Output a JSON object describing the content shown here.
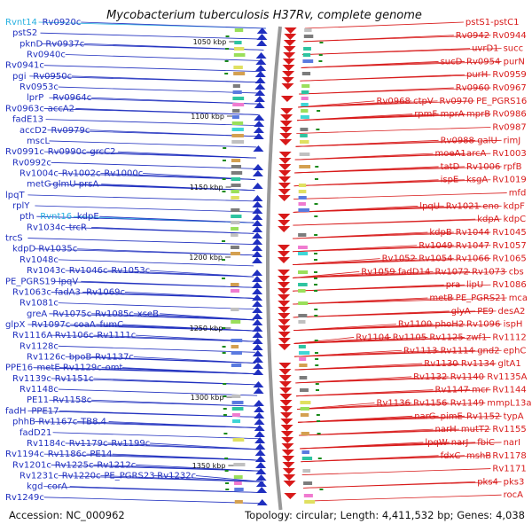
{
  "title": "Mycobacterium tuberculosis H37Rv, complete genome",
  "footer": {
    "accession": "Accession: NC_000962",
    "summary": "Topology: circular; Length: 4,411,532 bp; Genes: 4,038"
  },
  "colors": {
    "forward": "#1f2fbf",
    "reverse": "#d81a1a",
    "rna": "#27b0e0",
    "backbone": "#999999"
  },
  "kbp_markers": [
    {
      "label": "1050 kbp"
    },
    {
      "label": "1100 kbp"
    },
    {
      "label": "1150 kbp"
    },
    {
      "label": "1200 kbp"
    },
    {
      "label": "1250 kbp"
    },
    {
      "label": "1300 kbp"
    },
    {
      "label": "1350 kbp"
    }
  ],
  "left_genes": [
    {
      "text": "Rvnt14",
      "kind": "rna"
    },
    {
      "text": "Rv0920c"
    },
    {
      "text": "pstS2"
    },
    {
      "text": "pknD"
    },
    {
      "text": "Rv0937c"
    },
    {
      "text": "Rv0940c"
    },
    {
      "text": "Rv0941c"
    },
    {
      "text": "pgi"
    },
    {
      "text": "Rv0950c"
    },
    {
      "text": "Rv0953c"
    },
    {
      "text": "lprP"
    },
    {
      "text": "Rv0964c"
    },
    {
      "text": "Rv0963c"
    },
    {
      "text": "accA2"
    },
    {
      "text": "fadE13"
    },
    {
      "text": "accD2"
    },
    {
      "text": "Rv0979c"
    },
    {
      "text": "mscL"
    },
    {
      "text": "Rv0991c"
    },
    {
      "text": "Rv0990c"
    },
    {
      "text": "grcC2"
    },
    {
      "text": "Rv0992c"
    },
    {
      "text": "Rv1004c"
    },
    {
      "text": "Rv1002c"
    },
    {
      "text": "Rv1000c"
    },
    {
      "text": "metG"
    },
    {
      "text": "glmU"
    },
    {
      "text": "prsA"
    },
    {
      "text": "lpqT"
    },
    {
      "text": "rplY"
    },
    {
      "text": "pth"
    },
    {
      "text": "Rvnt16",
      "kind": "rna"
    },
    {
      "text": "kdpE"
    },
    {
      "text": "Rv1034c"
    },
    {
      "text": "trcR"
    },
    {
      "text": "trcS"
    },
    {
      "text": "kdpD"
    },
    {
      "text": "Rv1035c"
    },
    {
      "text": "Rv1048c"
    },
    {
      "text": "Rv1043c"
    },
    {
      "text": "Rv1046c"
    },
    {
      "text": "Rv1053c"
    },
    {
      "text": "PE_PGRS19"
    },
    {
      "text": "lpqV"
    },
    {
      "text": "Rv1063c"
    },
    {
      "text": "fadA3"
    },
    {
      "text": "Rv1069c"
    },
    {
      "text": "Rv1081c"
    },
    {
      "text": "greA"
    },
    {
      "text": "Rv1075c"
    },
    {
      "text": "Rv1085c"
    },
    {
      "text": "xseB"
    },
    {
      "text": "glpX"
    },
    {
      "text": "Rv1097c"
    },
    {
      "text": "coaA"
    },
    {
      "text": "fumC"
    },
    {
      "text": "Rv1116A"
    },
    {
      "text": "Rv1106c"
    },
    {
      "text": "Rv1111c"
    },
    {
      "text": "Rv1128c"
    },
    {
      "text": "Rv1126c"
    },
    {
      "text": "bpoB"
    },
    {
      "text": "Rv1137c"
    },
    {
      "text": "PPE16"
    },
    {
      "text": "metE"
    },
    {
      "text": "Rv1129c"
    },
    {
      "text": "omt"
    },
    {
      "text": "Rv1139c"
    },
    {
      "text": "Rv1151c"
    },
    {
      "text": "Rv1148c"
    },
    {
      "text": "PE11"
    },
    {
      "text": "Rv1158c"
    },
    {
      "text": "fadH"
    },
    {
      "text": "PPE17"
    },
    {
      "text": "phhB"
    },
    {
      "text": "Rv1167c"
    },
    {
      "text": "TB8.4"
    },
    {
      "text": "fadD21"
    },
    {
      "text": "Rv1184c"
    },
    {
      "text": "Rv1179c"
    },
    {
      "text": "Rv1199c"
    },
    {
      "text": "Rv1194c"
    },
    {
      "text": "Rv1186c"
    },
    {
      "text": "PE14"
    },
    {
      "text": "Rv1201c"
    },
    {
      "text": "Rv1225c"
    },
    {
      "text": "Rv1212c"
    },
    {
      "text": "Rv1231c"
    },
    {
      "text": "Rv1220c"
    },
    {
      "text": "PE_PGRS23"
    },
    {
      "text": "Rv1232c"
    },
    {
      "text": "kgd"
    },
    {
      "text": "corA"
    },
    {
      "text": "Rv1249c"
    }
  ],
  "right_genes": [
    {
      "text": "pstS1-pstC1"
    },
    {
      "text": "Rv0942"
    },
    {
      "text": "Rv0944"
    },
    {
      "text": "uvrD1"
    },
    {
      "text": "succ"
    },
    {
      "text": "sucD"
    },
    {
      "text": "Rv0954"
    },
    {
      "text": "purN"
    },
    {
      "text": "purH"
    },
    {
      "text": "Rv0959"
    },
    {
      "text": "Rv0960"
    },
    {
      "text": "Rv0967"
    },
    {
      "text": "Rv0968"
    },
    {
      "text": "ctpV"
    },
    {
      "text": "Rv0970"
    },
    {
      "text": "PE_PGRS16"
    },
    {
      "text": "rpmF"
    },
    {
      "text": "mprA"
    },
    {
      "text": "mprB"
    },
    {
      "text": "Rv0986"
    },
    {
      "text": "Rv0987"
    },
    {
      "text": "Rv0988"
    },
    {
      "text": "galU"
    },
    {
      "text": "rimJ"
    },
    {
      "text": "moeA1"
    },
    {
      "text": "arcA"
    },
    {
      "text": "Rv1003"
    },
    {
      "text": "tatD"
    },
    {
      "text": "Rv1006"
    },
    {
      "text": "rpfB"
    },
    {
      "text": "ispE"
    },
    {
      "text": "ksgA"
    },
    {
      "text": "Rv1019"
    },
    {
      "text": "mfd"
    },
    {
      "text": "lpqU"
    },
    {
      "text": "Rv1021"
    },
    {
      "text": "eno"
    },
    {
      "text": "kdpF"
    },
    {
      "text": "kdpA"
    },
    {
      "text": "kdpC"
    },
    {
      "text": "kdpB"
    },
    {
      "text": "Rv1044"
    },
    {
      "text": "Rv1045"
    },
    {
      "text": "Rv1049"
    },
    {
      "text": "Rv1047"
    },
    {
      "text": "Rv1057"
    },
    {
      "text": "Rv1052"
    },
    {
      "text": "Rv1054"
    },
    {
      "text": "Rv1066"
    },
    {
      "text": "Rv1065"
    },
    {
      "text": "Rv1059"
    },
    {
      "text": "fadD14"
    },
    {
      "text": "Rv1072"
    },
    {
      "text": "Rv1073"
    },
    {
      "text": "cbs"
    },
    {
      "text": "pra"
    },
    {
      "text": "lipU"
    },
    {
      "text": "Rv1086"
    },
    {
      "text": "metB"
    },
    {
      "text": "PE_PGRS21"
    },
    {
      "text": "mca"
    },
    {
      "text": "glyA"
    },
    {
      "text": "PE9"
    },
    {
      "text": "desA2"
    },
    {
      "text": "Rv1100"
    },
    {
      "text": "phoH2"
    },
    {
      "text": "Rv1096"
    },
    {
      "text": "ispH"
    },
    {
      "text": "Rv1104"
    },
    {
      "text": "Rv1105"
    },
    {
      "text": "Rv1125"
    },
    {
      "text": "zwf1"
    },
    {
      "text": "Rv1112"
    },
    {
      "text": "Rv1113"
    },
    {
      "text": "Rv1114"
    },
    {
      "text": "gnd2"
    },
    {
      "text": "ephC"
    },
    {
      "text": "Rv1130"
    },
    {
      "text": "Rv1134"
    },
    {
      "text": "gltA1"
    },
    {
      "text": "Rv1132"
    },
    {
      "text": "Rv1140"
    },
    {
      "text": "Rv1135A"
    },
    {
      "text": "Rv1147"
    },
    {
      "text": "mcr"
    },
    {
      "text": "Rv1144"
    },
    {
      "text": "Rv1136"
    },
    {
      "text": "Rv1156"
    },
    {
      "text": "Rv1149"
    },
    {
      "text": "mmpL13a"
    },
    {
      "text": "narG"
    },
    {
      "text": "pimE"
    },
    {
      "text": "Rv1152"
    },
    {
      "text": "typA"
    },
    {
      "text": "narH"
    },
    {
      "text": "mutT2"
    },
    {
      "text": "Rv1155"
    },
    {
      "text": "lpqW"
    },
    {
      "text": "narJ"
    },
    {
      "text": "fbiC"
    },
    {
      "text": "narI"
    },
    {
      "text": "fdxC"
    },
    {
      "text": "mshB"
    },
    {
      "text": "Rv1178"
    },
    {
      "text": "Rv1171"
    },
    {
      "text": "pks4"
    },
    {
      "text": "pks3"
    },
    {
      "text": "rocA"
    }
  ]
}
